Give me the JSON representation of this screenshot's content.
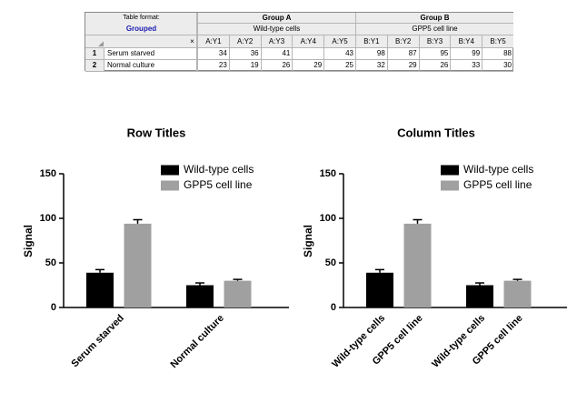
{
  "table": {
    "format_label": "Table format:",
    "format": "Grouped",
    "corner_mark": "×",
    "groups": [
      {
        "title": "Group A",
        "subtitle": "Wild-type cells"
      },
      {
        "title": "Group B",
        "subtitle": "GPP5 cell line"
      }
    ],
    "columns": [
      "A:Y1",
      "A:Y2",
      "A:Y3",
      "A:Y4",
      "A:Y5",
      "B:Y1",
      "B:Y2",
      "B:Y3",
      "B:Y4",
      "B:Y5"
    ],
    "rows": [
      {
        "number": 1,
        "title": "Serum starved",
        "values": [
          34,
          36,
          41,
          null,
          43,
          98,
          87,
          95,
          99,
          88
        ]
      },
      {
        "number": 2,
        "title": "Normal culture",
        "values": [
          23,
          19,
          26,
          29,
          25,
          32,
          29,
          26,
          33,
          30
        ]
      }
    ]
  },
  "chart_data": [
    {
      "type": "bar",
      "title": "Row Titles",
      "y_label": "Signal",
      "legend": "top-right",
      "categories": [
        "Serum starved",
        "Normal culture"
      ],
      "series": [
        {
          "name": "Wild-type cells",
          "color": "#000000",
          "values": [
            39,
            25
          ],
          "errors": [
            3.5,
            2.5
          ]
        },
        {
          "name": "GPP5 cell line",
          "color": "#a0a0a0",
          "values": [
            94,
            30
          ],
          "errors": [
            4.5,
            1.5
          ]
        }
      ],
      "ylim": [
        0,
        150
      ],
      "yticks": [
        0,
        50,
        100,
        150
      ]
    },
    {
      "type": "bar",
      "title": "Column Titles",
      "y_label": "Signal",
      "legend": "top-right",
      "categories": [
        null,
        null
      ],
      "series": [
        {
          "name": "Wild-type cells",
          "color": "#000000",
          "values": [
            39,
            25
          ],
          "errors": [
            3.5,
            2.5
          ]
        },
        {
          "name": "GPP5 cell line",
          "color": "#a0a0a0",
          "values": [
            94,
            30
          ],
          "errors": [
            4.5,
            1.5
          ]
        }
      ],
      "ylim": [
        0,
        150
      ],
      "yticks": [
        0,
        50,
        100,
        150
      ]
    }
  ]
}
